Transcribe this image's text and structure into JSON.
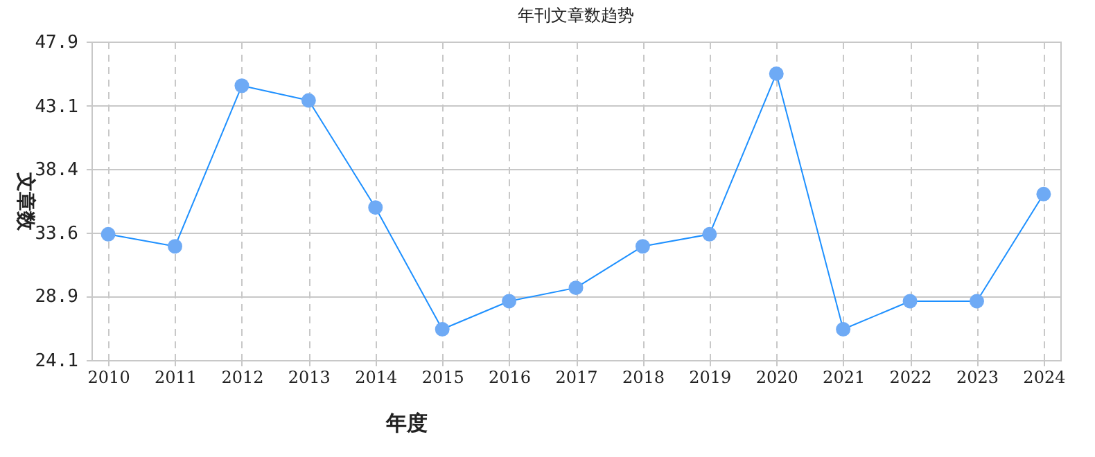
{
  "chart_data": {
    "type": "line",
    "title": "年刊文章数趋势",
    "xlabel": "年度",
    "ylabel": "文章数",
    "categories": [
      "2010",
      "2011",
      "2012",
      "2013",
      "2014",
      "2015",
      "2016",
      "2017",
      "2018",
      "2019",
      "2020",
      "2021",
      "2022",
      "2023",
      "2024"
    ],
    "series": [
      {
        "color": "#1e90ff",
        "values": [
          33.5,
          32.6,
          44.6,
          43.5,
          35.5,
          26.4,
          28.5,
          29.5,
          32.6,
          33.5,
          45.5,
          26.4,
          28.5,
          28.5,
          36.5
        ]
      }
    ],
    "ylim": [
      24.1,
      47.9
    ],
    "yticks": [
      24.1,
      28.9,
      33.6,
      38.4,
      43.1,
      47.9
    ],
    "grid": true,
    "marker": "circle",
    "line_style": "solid"
  }
}
